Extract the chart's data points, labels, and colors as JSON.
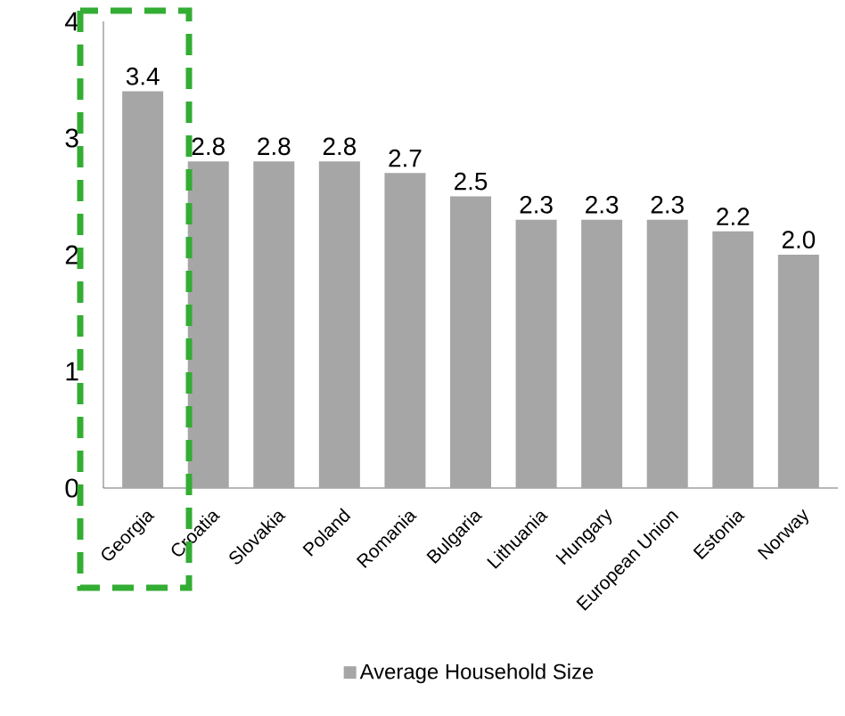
{
  "chart_data": {
    "type": "bar",
    "categories": [
      "Georgia",
      "Croatia",
      "Slovakia",
      "Poland",
      "Romania",
      "Bulgaria",
      "Lithuania",
      "Hungary",
      "European Union",
      "Estonia",
      "Norway"
    ],
    "series": [
      {
        "name": "Average Household Size",
        "color": "#a6a6a6",
        "values": [
          3.4,
          2.8,
          2.8,
          2.8,
          2.7,
          2.5,
          2.3,
          2.3,
          2.3,
          2.2,
          2.0
        ],
        "value_labels": [
          "3.4",
          "2.8",
          "2.8",
          "2.8",
          "2.7",
          "2.5",
          "2.3",
          "2.3",
          "2.3",
          "2.2",
          "2.0"
        ]
      }
    ],
    "ylim": [
      0,
      4
    ],
    "yticks": [
      0,
      1,
      2,
      3,
      4
    ],
    "legend": "bottom",
    "grid": false
  }
}
